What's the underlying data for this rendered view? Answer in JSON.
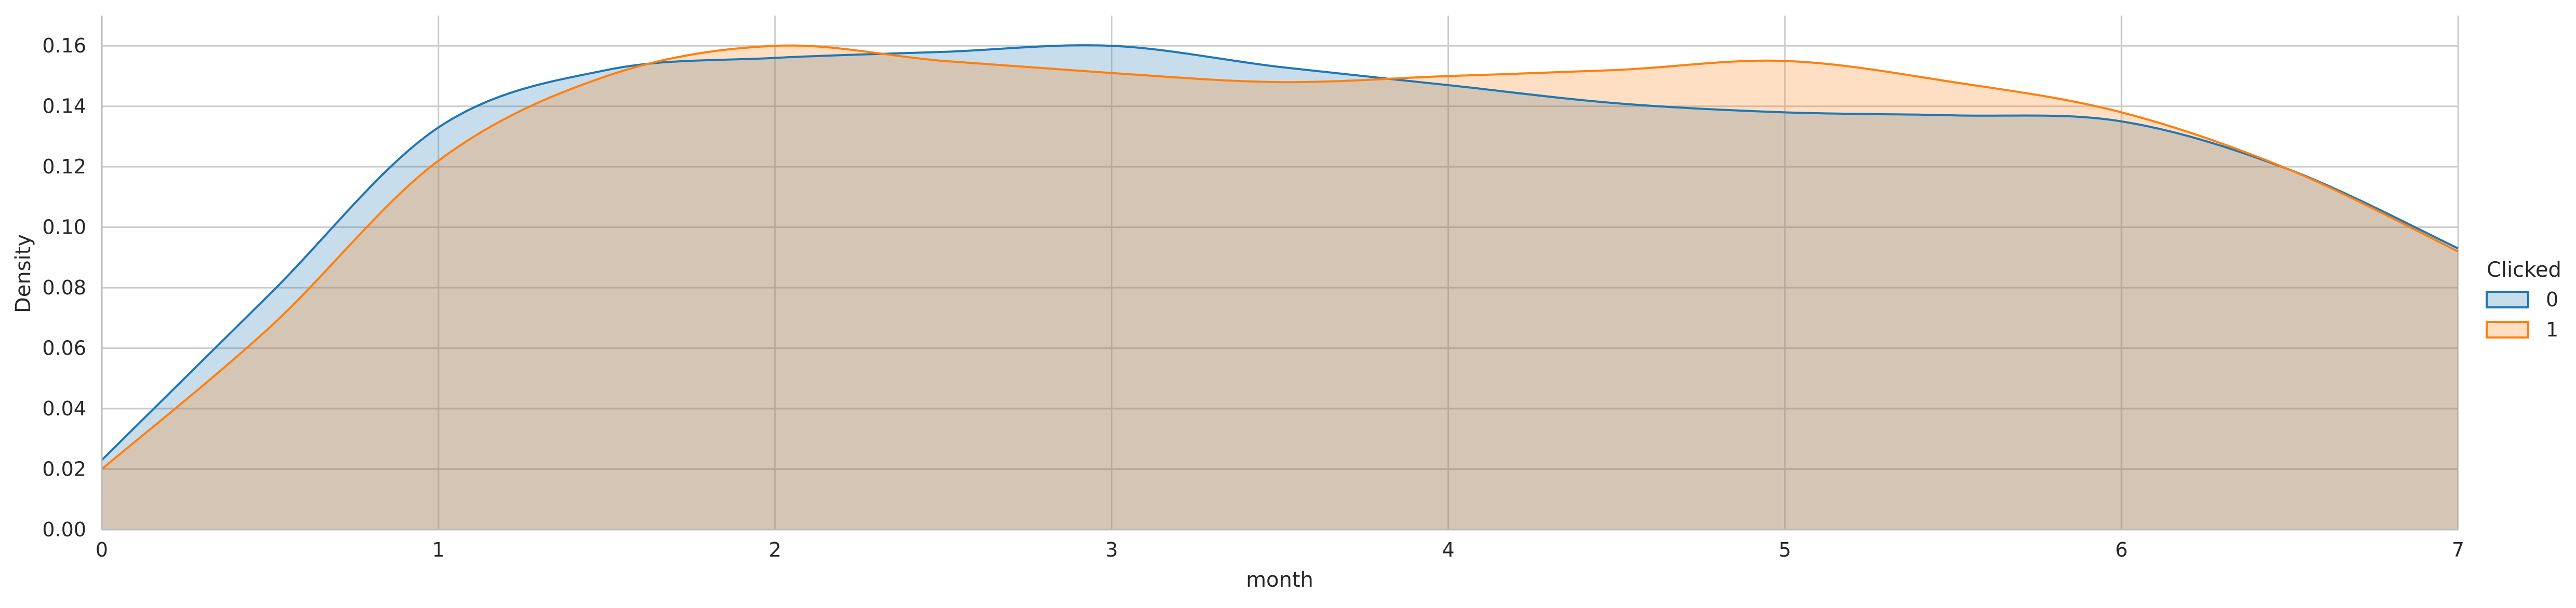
{
  "chart_data": {
    "type": "area",
    "xlabel": "month",
    "ylabel": "Density",
    "xlim": [
      0,
      7
    ],
    "ylim": [
      0,
      0.17
    ],
    "x_ticks": [
      0,
      1,
      2,
      3,
      4,
      5,
      6,
      7
    ],
    "x_tick_labels": [
      "0",
      "1",
      "2",
      "3",
      "4",
      "5",
      "6",
      "7"
    ],
    "y_ticks": [
      0.0,
      0.02,
      0.04,
      0.06,
      0.08,
      0.1,
      0.12,
      0.14,
      0.16
    ],
    "y_tick_labels": [
      "0.00",
      "0.02",
      "0.04",
      "0.06",
      "0.08",
      "0.10",
      "0.12",
      "0.14",
      "0.16"
    ],
    "grid": true,
    "legend": {
      "title": "Clicked",
      "position": "right"
    },
    "series": [
      {
        "name": "0",
        "color": "#1f77b4",
        "fill": "#c6dbef",
        "x": [
          0,
          0.5,
          1.0,
          1.5,
          2.0,
          2.5,
          3.0,
          3.5,
          4.0,
          4.5,
          5.0,
          5.5,
          6.0,
          6.5,
          7.0
        ],
        "y": [
          0.023,
          0.078,
          0.133,
          0.152,
          0.156,
          0.158,
          0.16,
          0.153,
          0.147,
          0.141,
          0.138,
          0.137,
          0.135,
          0.119,
          0.093
        ]
      },
      {
        "name": "1",
        "color": "#ff7f0e",
        "fill": "#fdd9b5",
        "x": [
          0,
          0.5,
          1.0,
          1.5,
          2.0,
          2.5,
          3.0,
          3.5,
          4.0,
          4.5,
          5.0,
          5.5,
          6.0,
          6.5,
          7.0
        ],
        "y": [
          0.02,
          0.067,
          0.122,
          0.15,
          0.16,
          0.155,
          0.151,
          0.148,
          0.15,
          0.152,
          0.155,
          0.148,
          0.138,
          0.119,
          0.092
        ]
      }
    ]
  }
}
